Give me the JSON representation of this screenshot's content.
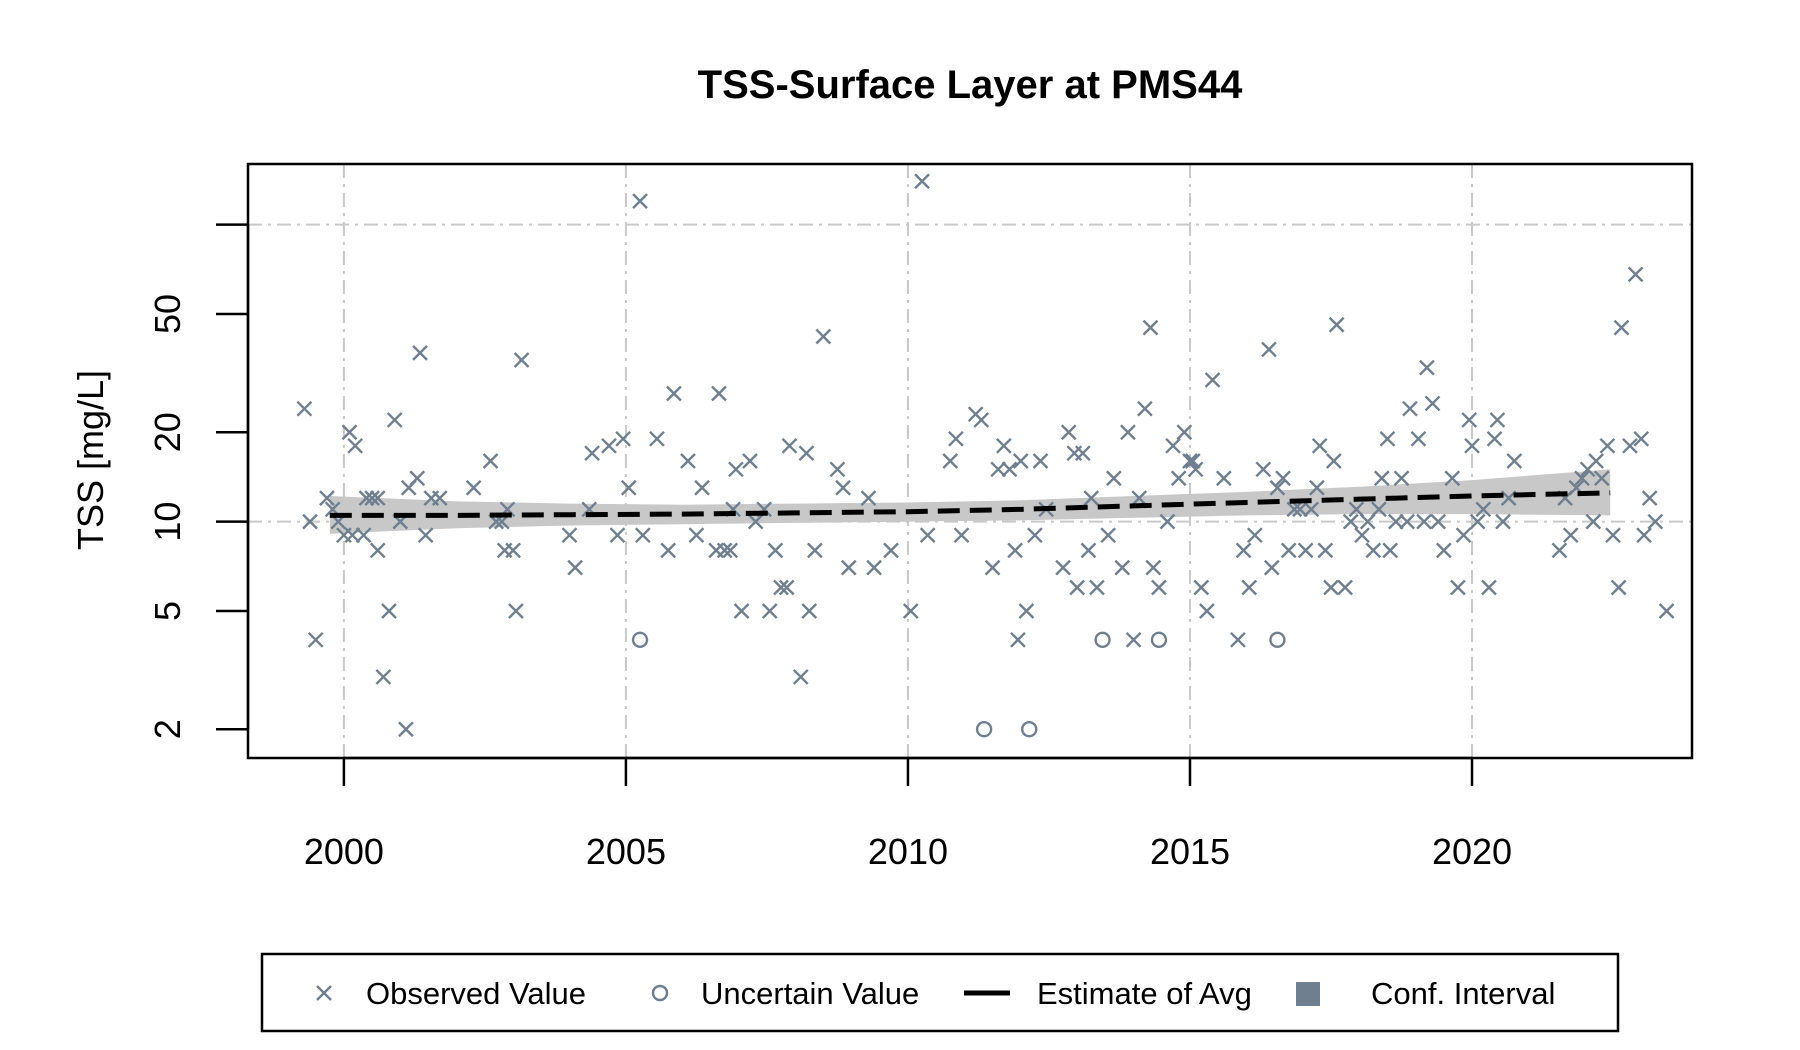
{
  "chart_data": {
    "type": "scatter",
    "title": "TSS-Surface Layer at PMS44",
    "xlabel": "",
    "ylabel": "TSS [mg/L]",
    "y_scale": "log",
    "xlim": [
      1998.3,
      2023.9
    ],
    "ylim": [
      1.6,
      160
    ],
    "x_ticks": [
      2000,
      2005,
      2010,
      2015,
      2020
    ],
    "x_tick_labels": [
      "2000",
      "2005",
      "2010",
      "2015",
      "2020"
    ],
    "y_ticks": [
      2,
      5,
      10,
      20,
      50
    ],
    "y_tick_labels": [
      "2",
      "5",
      "10",
      "20",
      "50"
    ],
    "y_grid": [
      10,
      100
    ],
    "grid": true,
    "legend_position": "bottom",
    "colors": {
      "points": "#6f7f8f",
      "estimate": "#000000",
      "band": "#c8c8c8",
      "legend_swatch": "#6f7f8f",
      "grid": "#c9c9c9"
    },
    "series": [
      {
        "name": "Observed Value",
        "marker": "x",
        "points": [
          [
            1999.3,
            24
          ],
          [
            1999.4,
            10
          ],
          [
            1999.5,
            4
          ],
          [
            1999.7,
            12
          ],
          [
            1999.8,
            11
          ],
          [
            1999.9,
            10
          ],
          [
            2000.0,
            9
          ],
          [
            2000.1,
            20
          ],
          [
            2000.15,
            9
          ],
          [
            2000.2,
            18
          ],
          [
            2000.35,
            9
          ],
          [
            2000.4,
            12
          ],
          [
            2000.5,
            12
          ],
          [
            2000.6,
            12
          ],
          [
            2000.6,
            8
          ],
          [
            2000.7,
            3
          ],
          [
            2000.8,
            5
          ],
          [
            2000.9,
            22
          ],
          [
            2001.0,
            10
          ],
          [
            2001.1,
            2
          ],
          [
            2001.15,
            13
          ],
          [
            2001.3,
            14
          ],
          [
            2001.35,
            37
          ],
          [
            2001.45,
            9
          ],
          [
            2001.55,
            12
          ],
          [
            2001.7,
            12
          ],
          [
            2002.3,
            13
          ],
          [
            2002.6,
            16
          ],
          [
            2002.7,
            10
          ],
          [
            2002.8,
            10
          ],
          [
            2002.85,
            8
          ],
          [
            2002.9,
            11
          ],
          [
            2003.0,
            8
          ],
          [
            2003.05,
            5
          ],
          [
            2003.15,
            35
          ],
          [
            2004.0,
            9
          ],
          [
            2004.1,
            7
          ],
          [
            2004.35,
            11
          ],
          [
            2004.4,
            17
          ],
          [
            2004.7,
            18
          ],
          [
            2004.85,
            9
          ],
          [
            2004.95,
            19
          ],
          [
            2005.05,
            13
          ],
          [
            2005.25,
            120
          ],
          [
            2005.3,
            9
          ],
          [
            2005.55,
            19
          ],
          [
            2005.75,
            8
          ],
          [
            2005.85,
            27
          ],
          [
            2006.1,
            16
          ],
          [
            2006.25,
            9
          ],
          [
            2006.35,
            13
          ],
          [
            2006.6,
            8
          ],
          [
            2006.65,
            27
          ],
          [
            2006.75,
            8
          ],
          [
            2006.85,
            8
          ],
          [
            2006.9,
            11
          ],
          [
            2006.95,
            15
          ],
          [
            2007.05,
            5
          ],
          [
            2007.2,
            16
          ],
          [
            2007.3,
            10
          ],
          [
            2007.45,
            11
          ],
          [
            2007.55,
            5
          ],
          [
            2007.65,
            8
          ],
          [
            2007.75,
            6
          ],
          [
            2007.85,
            6
          ],
          [
            2007.9,
            18
          ],
          [
            2008.1,
            3
          ],
          [
            2008.2,
            17
          ],
          [
            2008.25,
            5
          ],
          [
            2008.35,
            8
          ],
          [
            2008.5,
            42
          ],
          [
            2008.75,
            15
          ],
          [
            2008.85,
            13
          ],
          [
            2008.95,
            7
          ],
          [
            2009.3,
            12
          ],
          [
            2009.4,
            7
          ],
          [
            2009.7,
            8
          ],
          [
            2010.05,
            5
          ],
          [
            2010.25,
            140
          ],
          [
            2010.35,
            9
          ],
          [
            2010.75,
            16
          ],
          [
            2010.85,
            19
          ],
          [
            2010.95,
            9
          ],
          [
            2011.2,
            23
          ],
          [
            2011.3,
            22
          ],
          [
            2011.5,
            7
          ],
          [
            2011.6,
            15
          ],
          [
            2011.7,
            18
          ],
          [
            2011.8,
            15
          ],
          [
            2011.9,
            8
          ],
          [
            2011.95,
            4
          ],
          [
            2012.0,
            16
          ],
          [
            2012.1,
            5
          ],
          [
            2012.25,
            9
          ],
          [
            2012.35,
            16
          ],
          [
            2012.45,
            11
          ],
          [
            2012.75,
            7
          ],
          [
            2012.85,
            20
          ],
          [
            2012.95,
            17
          ],
          [
            2013.0,
            6
          ],
          [
            2013.1,
            17
          ],
          [
            2013.2,
            8
          ],
          [
            2013.25,
            12
          ],
          [
            2013.35,
            6
          ],
          [
            2013.55,
            9
          ],
          [
            2013.65,
            14
          ],
          [
            2013.8,
            7
          ],
          [
            2013.9,
            20
          ],
          [
            2014.0,
            4
          ],
          [
            2014.1,
            12
          ],
          [
            2014.2,
            24
          ],
          [
            2014.3,
            45
          ],
          [
            2014.35,
            7
          ],
          [
            2014.45,
            6
          ],
          [
            2014.6,
            10
          ],
          [
            2014.7,
            18
          ],
          [
            2014.8,
            14
          ],
          [
            2014.9,
            20
          ],
          [
            2015.0,
            16
          ],
          [
            2015.05,
            16
          ],
          [
            2015.1,
            15
          ],
          [
            2015.2,
            6
          ],
          [
            2015.3,
            5
          ],
          [
            2015.4,
            30
          ],
          [
            2015.6,
            14
          ],
          [
            2015.85,
            4
          ],
          [
            2015.95,
            8
          ],
          [
            2016.05,
            6
          ],
          [
            2016.15,
            9
          ],
          [
            2016.3,
            15
          ],
          [
            2016.4,
            38
          ],
          [
            2016.45,
            7
          ],
          [
            2016.55,
            13
          ],
          [
            2016.65,
            14
          ],
          [
            2016.75,
            8
          ],
          [
            2016.85,
            11
          ],
          [
            2016.95,
            11
          ],
          [
            2017.05,
            8
          ],
          [
            2017.15,
            11
          ],
          [
            2017.25,
            13
          ],
          [
            2017.3,
            18
          ],
          [
            2017.4,
            8
          ],
          [
            2017.5,
            6
          ],
          [
            2017.55,
            16
          ],
          [
            2017.6,
            46
          ],
          [
            2017.75,
            6
          ],
          [
            2017.85,
            10
          ],
          [
            2017.95,
            11
          ],
          [
            2018.05,
            9
          ],
          [
            2018.15,
            10
          ],
          [
            2018.25,
            8
          ],
          [
            2018.35,
            11
          ],
          [
            2018.4,
            14
          ],
          [
            2018.5,
            19
          ],
          [
            2018.55,
            8
          ],
          [
            2018.65,
            10
          ],
          [
            2018.75,
            14
          ],
          [
            2018.85,
            10
          ],
          [
            2018.9,
            24
          ],
          [
            2019.05,
            19
          ],
          [
            2019.15,
            10
          ],
          [
            2019.2,
            33
          ],
          [
            2019.3,
            25
          ],
          [
            2019.4,
            10
          ],
          [
            2019.5,
            8
          ],
          [
            2019.65,
            14
          ],
          [
            2019.75,
            6
          ],
          [
            2019.85,
            9
          ],
          [
            2019.95,
            22
          ],
          [
            2020.0,
            18
          ],
          [
            2020.1,
            10
          ],
          [
            2020.2,
            11
          ],
          [
            2020.3,
            6
          ],
          [
            2020.4,
            19
          ],
          [
            2020.45,
            22
          ],
          [
            2020.55,
            10
          ],
          [
            2020.65,
            12
          ],
          [
            2020.75,
            16
          ],
          [
            2021.55,
            8
          ],
          [
            2021.65,
            12
          ],
          [
            2021.75,
            9
          ],
          [
            2021.85,
            13
          ],
          [
            2021.95,
            14
          ],
          [
            2022.05,
            15
          ],
          [
            2022.15,
            10
          ],
          [
            2022.2,
            16
          ],
          [
            2022.3,
            14
          ],
          [
            2022.4,
            18
          ],
          [
            2022.5,
            9
          ],
          [
            2022.6,
            6
          ],
          [
            2022.65,
            45
          ],
          [
            2022.8,
            18
          ],
          [
            2022.9,
            68
          ],
          [
            2023.0,
            19
          ],
          [
            2023.05,
            9
          ],
          [
            2023.15,
            12
          ],
          [
            2023.25,
            10
          ],
          [
            2023.45,
            5
          ]
        ]
      },
      {
        "name": "Uncertain Value",
        "marker": "o",
        "points": [
          [
            2005.25,
            4
          ],
          [
            2011.35,
            2
          ],
          [
            2012.15,
            2
          ],
          [
            2013.45,
            4
          ],
          [
            2014.45,
            4
          ],
          [
            2016.55,
            4
          ]
        ]
      },
      {
        "name": "Estimate of Avg",
        "style": "dashed",
        "x": [
          1999.75,
          2002,
          2004,
          2006,
          2008,
          2010,
          2012,
          2014,
          2016,
          2018,
          2020,
          2022.45
        ],
        "values": [
          10.5,
          10.5,
          10.55,
          10.6,
          10.7,
          10.8,
          11.0,
          11.3,
          11.6,
          11.9,
          12.2,
          12.5
        ]
      },
      {
        "name": "Conf. Interval",
        "style": "band",
        "x": [
          1999.75,
          2002,
          2004,
          2006,
          2008,
          2010,
          2012,
          2014,
          2016,
          2018,
          2020,
          2022.45
        ],
        "lower": [
          9.1,
          9.5,
          9.7,
          9.8,
          9.9,
          10.0,
          10.1,
          10.3,
          10.5,
          10.6,
          10.6,
          10.5
        ],
        "upper": [
          12.2,
          11.7,
          11.5,
          11.4,
          11.5,
          11.6,
          11.8,
          12.2,
          12.6,
          13.1,
          13.8,
          15.0
        ]
      }
    ]
  }
}
